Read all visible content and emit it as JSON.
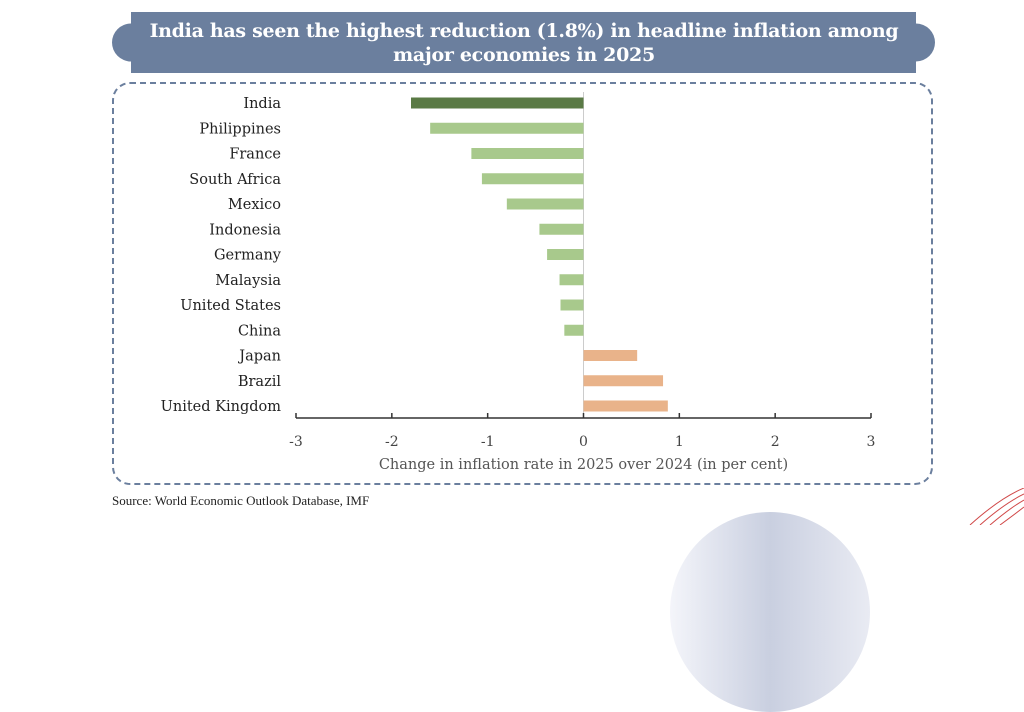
{
  "title": {
    "line1": "India has seen the highest reduction (1.8%) in headline inflation among",
    "line2": "major economies in 2025"
  },
  "colors": {
    "banner": "#6b7f9e",
    "highlight_bar": "#5a7a45",
    "negative_bar": "#a8c98c",
    "positive_bar": "#e9b38a",
    "axis": "#333333",
    "zero_line": "#cccccc"
  },
  "source": "Source: World Economic Outlook Database, IMF",
  "chart_data": {
    "type": "bar",
    "orientation": "horizontal",
    "title": "India has seen the highest reduction (1.8%) in headline inflation among major economies in 2025",
    "xlabel": "Change in inflation rate in 2025 over 2024 (in per cent)",
    "ylabel": "",
    "xlim": [
      -3,
      3
    ],
    "xticks": [
      -3,
      -2,
      -1,
      0,
      1,
      2,
      3
    ],
    "grid": false,
    "categories": [
      "India",
      "Philippines",
      "France",
      "South Africa",
      "Mexico",
      "Indonesia",
      "Germany",
      "Malaysia",
      "United States",
      "China",
      "Japan",
      "Brazil",
      "United Kingdom"
    ],
    "values": [
      -1.8,
      -1.6,
      -1.17,
      -1.06,
      -0.8,
      -0.46,
      -0.38,
      -0.25,
      -0.24,
      -0.2,
      0.56,
      0.83,
      0.88
    ],
    "highlight": "India"
  }
}
